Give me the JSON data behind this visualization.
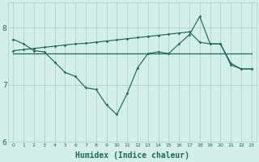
{
  "x": [
    0,
    1,
    2,
    3,
    4,
    5,
    6,
    7,
    8,
    9,
    10,
    11,
    12,
    13,
    14,
    15,
    16,
    17,
    18,
    19,
    20,
    21,
    22,
    23
  ],
  "line_wavy": [
    7.8,
    7.72,
    7.6,
    7.58,
    7.4,
    7.22,
    7.15,
    6.95,
    6.92,
    6.65,
    6.48,
    6.85,
    7.3,
    7.55,
    7.58,
    7.55,
    7.72,
    7.88,
    8.2,
    7.72,
    7.72,
    7.38,
    7.28,
    7.28
  ],
  "line_flat": [
    7.55,
    7.55,
    7.55,
    7.55,
    7.55,
    7.55,
    7.55,
    7.55,
    7.55,
    7.55,
    7.55,
    7.55,
    7.55,
    7.55,
    7.55,
    7.55,
    7.55,
    7.55,
    7.55,
    7.55,
    7.55,
    7.55,
    7.55,
    7.55
  ],
  "line_rise": [
    7.6,
    7.62,
    7.64,
    7.66,
    7.68,
    7.7,
    7.72,
    7.73,
    7.75,
    7.77,
    7.79,
    7.81,
    7.83,
    7.85,
    7.87,
    7.89,
    7.91,
    7.93,
    7.75,
    7.72,
    7.72,
    7.35,
    7.28,
    7.28
  ],
  "line_color": "#1a6b5a",
  "bg_color": "#d4eeea",
  "grid_color": "#a8ccc8",
  "xlabel": "Humidex (Indice chaleur)",
  "ylim": [
    6.0,
    8.45
  ],
  "xlim": [
    -0.5,
    23.5
  ],
  "yticks": [
    6,
    7,
    8
  ]
}
